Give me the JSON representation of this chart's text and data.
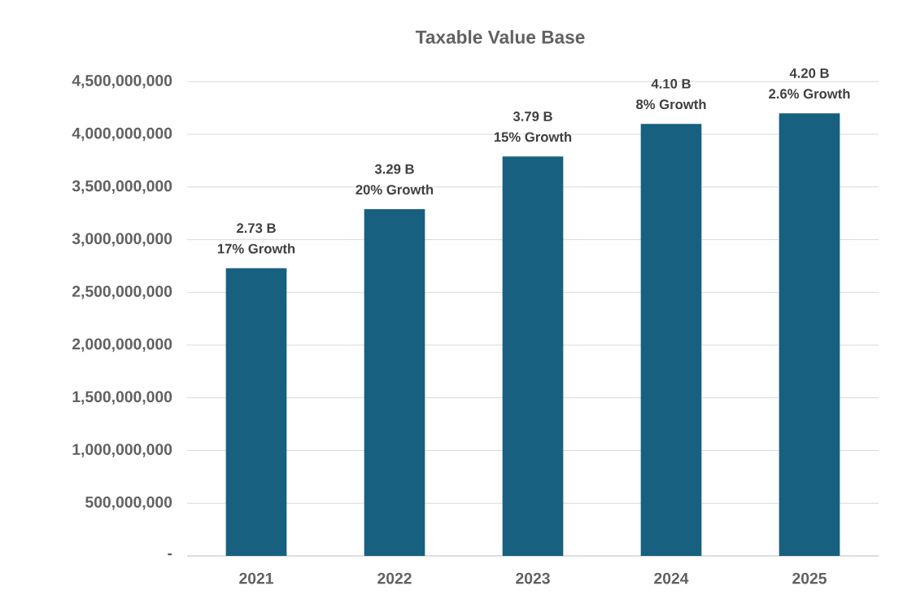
{
  "chart_data": {
    "type": "bar",
    "title": "Taxable Value Base",
    "categories": [
      "2021",
      "2022",
      "2023",
      "2024",
      "2025"
    ],
    "values": [
      2730000000,
      3290000000,
      3790000000,
      4100000000,
      4200000000
    ],
    "value_labels": [
      "2.73 B",
      "3.29 B",
      "3.79 B",
      "4.10 B",
      "4.20 B"
    ],
    "annotations": [
      {
        "text": "17% Growth",
        "x": "2021",
        "y": 2730000000
      },
      {
        "text": "20% Growth",
        "x": "2022",
        "y": 3290000000
      },
      {
        "text": "15% Growth",
        "x": "2023",
        "y": 3790000000
      },
      {
        "text": "8% Growth",
        "x": "2024",
        "y": 4100000000
      },
      {
        "text": "2.6% Growth",
        "x": "2025",
        "y": 4200000000
      }
    ],
    "color": "#17607f",
    "ylim": [
      0,
      4500000000
    ],
    "yticks": [
      {
        "value": 0,
        "label": "-"
      },
      {
        "value": 500000000,
        "label": "500,000,000"
      },
      {
        "value": 1000000000,
        "label": "1,000,000,000"
      },
      {
        "value": 1500000000,
        "label": "1,500,000,000"
      },
      {
        "value": 2000000000,
        "label": "2,000,000,000"
      },
      {
        "value": 2500000000,
        "label": "2,500,000,000"
      },
      {
        "value": 3000000000,
        "label": "3,000,000,000"
      },
      {
        "value": 3500000000,
        "label": "3,500,000,000"
      },
      {
        "value": 4000000000,
        "label": "4,000,000,000"
      },
      {
        "value": 4500000000,
        "label": "4,500,000,000"
      }
    ],
    "grid": "y"
  }
}
